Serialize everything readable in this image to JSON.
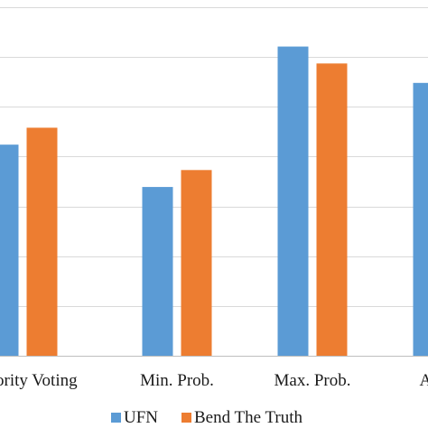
{
  "chart_data": {
    "type": "bar",
    "categories": [
      "Majority Voting",
      "Min. Prob.",
      "Max. Prob.",
      "Average"
    ],
    "series": [
      {
        "name": "UFN",
        "color": "#5B9BD5",
        "values": [
          0.424,
          0.339,
          0.621,
          0.548
        ]
      },
      {
        "name": "Bend The Truth",
        "color": "#ED7D31",
        "values": [
          0.458,
          0.373,
          0.587,
          null
        ]
      }
    ],
    "ylim": [
      0,
      0.7
    ],
    "grid": true,
    "legend_position": "bottom"
  }
}
